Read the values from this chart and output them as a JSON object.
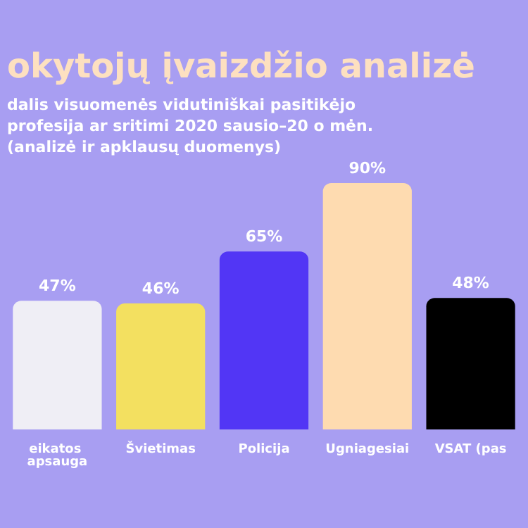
{
  "chart_data": {
    "type": "bar",
    "title": "okytojų įvaizdžio analizė",
    "subtitle": "dalis visuomenės vidutiniškai pasitikėjo profesija ar sritimi 2020 sausio–20 o mėn. (analizė ir apklausų duomenys)",
    "categories": [
      "eikatos apsauga",
      "Švietimas",
      "Policija",
      "Ugniagesiai",
      "VSAT (pas"
    ],
    "values": [
      47,
      46,
      65,
      90,
      48
    ],
    "colors": [
      "#efeef5",
      "#f3e060",
      "#5236f5",
      "#fedbb0",
      "#000000"
    ],
    "value_labels": [
      "47%",
      "46%",
      "65%",
      "90%",
      "48%"
    ],
    "grid": false
  }
}
